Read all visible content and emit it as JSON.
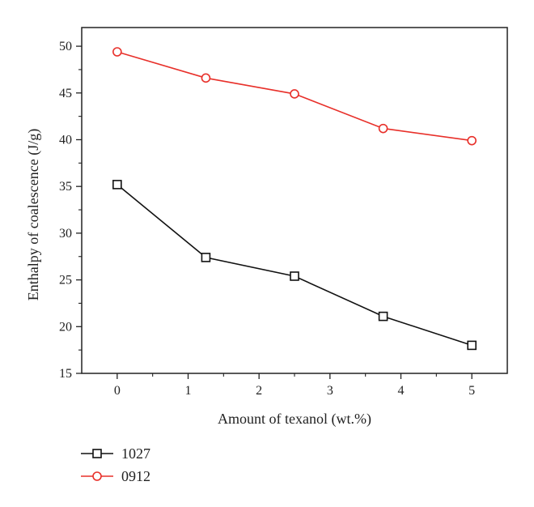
{
  "chart_data": {
    "type": "line",
    "title": "",
    "xlabel": "Amount of texanol (wt.%)",
    "ylabel": "Enthalpy of coalescence (J/g)",
    "xlim": [
      -0.5,
      5.5
    ],
    "ylim": [
      15,
      52
    ],
    "x_ticks": [
      0,
      1,
      2,
      3,
      4,
      5
    ],
    "y_ticks": [
      15,
      20,
      25,
      30,
      35,
      40,
      45,
      50
    ],
    "grid": false,
    "legend_position": "bottom-left",
    "series": [
      {
        "name": "1027",
        "marker": "square",
        "color": "#111111",
        "x": [
          0,
          1.25,
          2.5,
          3.75,
          5
        ],
        "y": [
          35.2,
          27.4,
          25.4,
          21.1,
          18.0
        ]
      },
      {
        "name": "0912",
        "marker": "circle",
        "color": "#e8302a",
        "x": [
          0,
          1.25,
          2.5,
          3.75,
          5
        ],
        "y": [
          49.4,
          46.6,
          44.9,
          41.2,
          39.9
        ]
      }
    ]
  }
}
